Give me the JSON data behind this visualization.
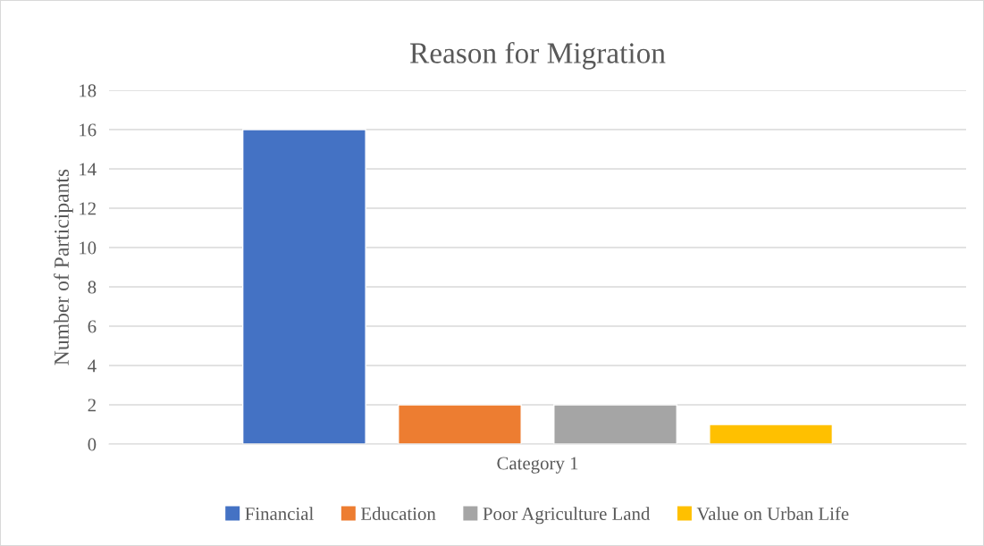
{
  "chart_data": {
    "type": "bar",
    "title": "Reason for Migration",
    "ylabel": "Number of Participants",
    "categories": [
      "Category 1"
    ],
    "series": [
      {
        "name": "Financial",
        "color": "#4472c4",
        "values": [
          16
        ]
      },
      {
        "name": "Education",
        "color": "#ed7d31",
        "values": [
          2
        ]
      },
      {
        "name": "Poor Agriculture Land",
        "color": "#a5a5a5",
        "values": [
          2
        ]
      },
      {
        "name": "Value on Urban Life",
        "color": "#ffc000",
        "values": [
          1
        ]
      }
    ],
    "ylim": [
      0,
      18
    ],
    "yticks": [
      0,
      2,
      4,
      6,
      8,
      10,
      12,
      14,
      16,
      18
    ],
    "grid": "y",
    "legend": "bottom"
  }
}
